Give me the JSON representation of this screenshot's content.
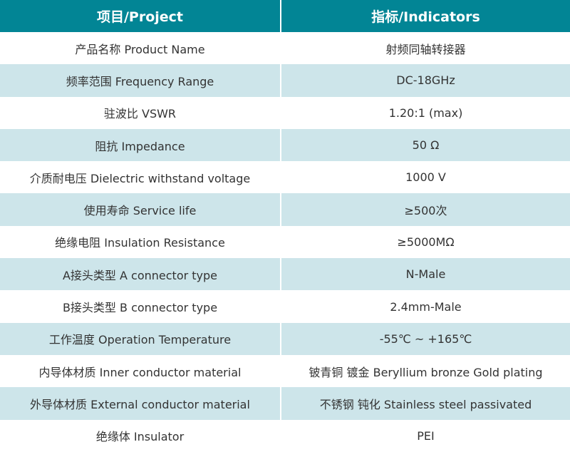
{
  "header": {
    "project": "项目/Project",
    "indicators": "指标/Indicators"
  },
  "colors": {
    "header": "#028595",
    "stripe": "#cde5ea"
  },
  "rows": [
    {
      "project": "产品名称 Product Name",
      "value": "射频同轴转接器"
    },
    {
      "project": "频率范围 Frequency Range",
      "value": "DC-18GHz"
    },
    {
      "project": "驻波比 VSWR",
      "value": "1.20:1 (max)"
    },
    {
      "project": "阻抗 Impedance",
      "value": "50 Ω"
    },
    {
      "project": "介质耐电压 Dielectric withstand voltage",
      "value": "1000 V"
    },
    {
      "project": "使用寿命 Service life",
      "value": "≥500次"
    },
    {
      "project": "绝缘电阻 Insulation Resistance",
      "value": "≥5000MΩ"
    },
    {
      "project": "A接头类型 A connector type",
      "value": "N-Male"
    },
    {
      "project": "B接头类型 B connector type",
      "value": "2.4mm-Male"
    },
    {
      "project": "工作温度 Operation Temperature",
      "value": "-55℃ ~ +165℃"
    },
    {
      "project": "内导体材质 Inner conductor material",
      "value": "铍青铜 镀金 Beryllium bronze Gold plating"
    },
    {
      "project": "外导体材质 External conductor material",
      "value": "不锈钢 钝化 Stainless steel passivated"
    },
    {
      "project": "绝缘体 Insulator",
      "value": "PEI"
    }
  ]
}
